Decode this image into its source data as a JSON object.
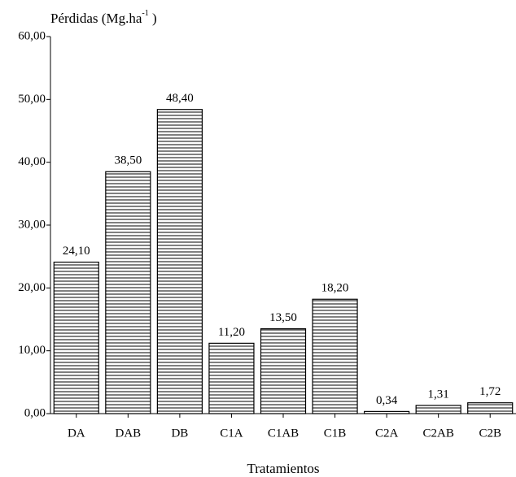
{
  "chart_data": {
    "type": "bar",
    "ylabel": [
      "Pérdidas (Mg.ha",
      "-1",
      " )"
    ],
    "xlabel": "Tratamientos",
    "categories": [
      "DA",
      "DAB",
      "DB",
      "C1A",
      "C1AB",
      "C1B",
      "C2A",
      "C2AB",
      "C2B"
    ],
    "values": [
      24.1,
      38.5,
      48.4,
      11.2,
      13.5,
      18.2,
      0.34,
      1.31,
      1.72
    ],
    "value_labels": [
      "24,10",
      "38,50",
      "48,40",
      "11,20",
      "13,50",
      "18,20",
      "0,34",
      "1,31",
      "1,72"
    ],
    "color": "#000000",
    "ylim": [
      0,
      60
    ],
    "yticks": [
      {
        "value": 0,
        "label": "0,00"
      },
      {
        "value": 10,
        "label": "10,00"
      },
      {
        "value": 20,
        "label": "20,00"
      },
      {
        "value": 30,
        "label": "30,00"
      },
      {
        "value": 40,
        "label": "40,00"
      },
      {
        "value": 50,
        "label": "50,00"
      },
      {
        "value": 60,
        "label": "60,00"
      }
    ]
  }
}
